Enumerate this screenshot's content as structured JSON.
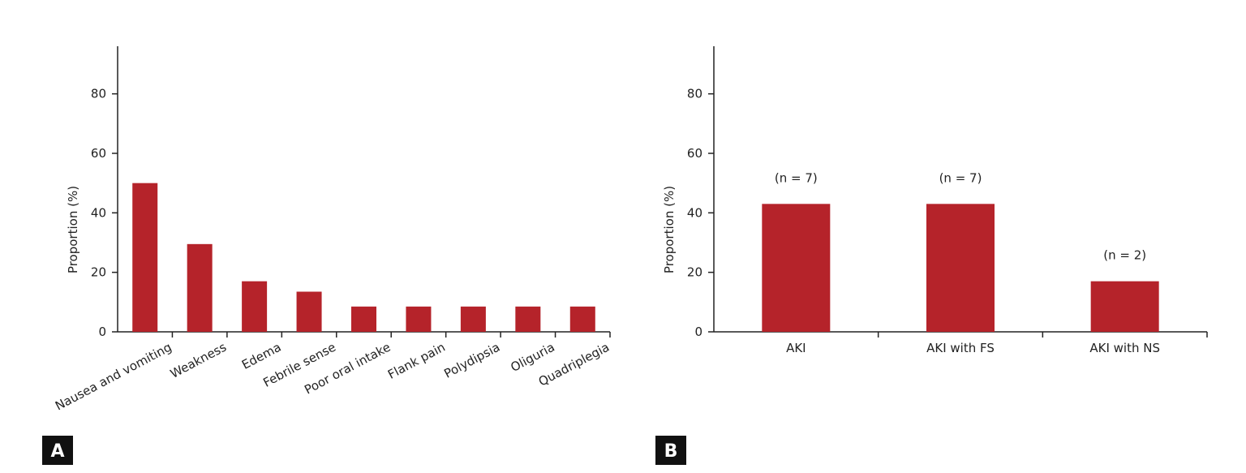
{
  "chart_data": [
    {
      "type": "bar",
      "panel_label": "A",
      "ylabel": "Proportion (%)",
      "categories": [
        "Nausea and vomiting",
        "Weakness",
        "Edema",
        "Febrile sense",
        "Poor oral intake",
        "Flank pain",
        "Polydipsia",
        "Oliguria",
        "Quadriplegia"
      ],
      "values": [
        50,
        29.5,
        17,
        13.5,
        8.5,
        8.5,
        8.5,
        8.5,
        8.5
      ],
      "color": "#b5232a",
      "ylim": [
        0,
        96
      ],
      "yticks": [
        0,
        20,
        40,
        60,
        80
      ],
      "rotate_labels": true
    },
    {
      "type": "bar",
      "panel_label": "B",
      "ylabel": "Proportion (%)",
      "categories": [
        "AKI",
        "AKI with FS",
        "AKI with NS"
      ],
      "values": [
        43,
        43,
        17
      ],
      "bar_labels": [
        "(n = 7)",
        "(n = 7)",
        "(n = 2)"
      ],
      "color": "#b5232a",
      "ylim": [
        0,
        96
      ],
      "yticks": [
        0,
        20,
        40,
        60,
        80
      ],
      "rotate_labels": false
    }
  ]
}
